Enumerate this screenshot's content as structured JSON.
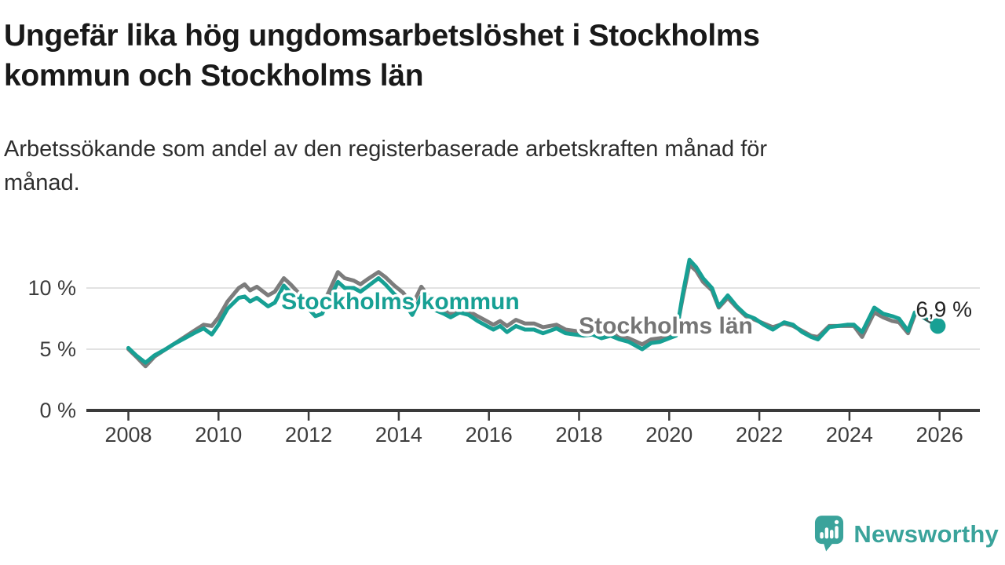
{
  "chart_data": {
    "type": "line",
    "title": "Ungefär lika hög ungdomsarbetslöshet i Stockholms kommun och Stockholms län",
    "subtitle": "Arbetssökande som andel av den registerbaserade arbetskraften månad för månad.",
    "unit": "%",
    "x_range": [
      2007.05,
      2026.9
    ],
    "y_range": [
      0,
      13
    ],
    "grid": "horizontal",
    "legend_position": "inline-labels-on-lines",
    "x_ticks": [
      "2008",
      "2010",
      "2012",
      "2014",
      "2016",
      "2018",
      "2020",
      "2022",
      "2024",
      "2026"
    ],
    "y_ticks": [
      {
        "value": 10,
        "label": "10 %",
        "grid": true
      },
      {
        "value": 5,
        "label": "5 %",
        "grid": true
      },
      {
        "value": 0,
        "label": "0 %",
        "grid": false
      }
    ],
    "series": [
      {
        "name": "Stockholms län",
        "color": "#7c7c7c",
        "points": [
          [
            2008.0,
            5.0
          ],
          [
            2008.17,
            4.4
          ],
          [
            2008.38,
            3.6
          ],
          [
            2008.58,
            4.4
          ],
          [
            2008.83,
            5.0
          ],
          [
            2009.0,
            5.4
          ],
          [
            2009.25,
            6.0
          ],
          [
            2009.5,
            6.6
          ],
          [
            2009.67,
            7.0
          ],
          [
            2009.85,
            6.9
          ],
          [
            2010.0,
            7.6
          ],
          [
            2010.2,
            8.9
          ],
          [
            2010.45,
            10.0
          ],
          [
            2010.58,
            10.3
          ],
          [
            2010.7,
            9.8
          ],
          [
            2010.85,
            10.1
          ],
          [
            2011.1,
            9.4
          ],
          [
            2011.25,
            9.7
          ],
          [
            2011.45,
            10.8
          ],
          [
            2011.6,
            10.3
          ],
          [
            2011.8,
            9.5
          ],
          [
            2012.0,
            9.1
          ],
          [
            2012.15,
            8.4
          ],
          [
            2012.3,
            8.6
          ],
          [
            2012.45,
            9.7
          ],
          [
            2012.65,
            11.3
          ],
          [
            2012.8,
            10.8
          ],
          [
            2013.0,
            10.6
          ],
          [
            2013.15,
            10.3
          ],
          [
            2013.3,
            10.7
          ],
          [
            2013.55,
            11.3
          ],
          [
            2013.7,
            10.9
          ],
          [
            2013.9,
            10.2
          ],
          [
            2014.1,
            9.6
          ],
          [
            2014.3,
            8.6
          ],
          [
            2014.5,
            10.1
          ],
          [
            2014.6,
            9.6
          ],
          [
            2014.8,
            8.7
          ],
          [
            2015.0,
            8.2
          ],
          [
            2015.15,
            7.9
          ],
          [
            2015.35,
            8.3
          ],
          [
            2015.55,
            8.1
          ],
          [
            2015.75,
            7.7
          ],
          [
            2015.9,
            7.4
          ],
          [
            2016.1,
            7.0
          ],
          [
            2016.25,
            7.3
          ],
          [
            2016.4,
            6.9
          ],
          [
            2016.6,
            7.4
          ],
          [
            2016.8,
            7.1
          ],
          [
            2017.0,
            7.1
          ],
          [
            2017.2,
            6.8
          ],
          [
            2017.5,
            7.0
          ],
          [
            2017.7,
            6.6
          ],
          [
            2017.9,
            6.5
          ],
          [
            2018.1,
            6.4
          ],
          [
            2018.3,
            6.5
          ],
          [
            2018.5,
            6.2
          ],
          [
            2018.7,
            6.4
          ],
          [
            2018.9,
            6.1
          ],
          [
            2019.1,
            5.9
          ],
          [
            2019.4,
            5.4
          ],
          [
            2019.6,
            5.8
          ],
          [
            2019.8,
            5.9
          ],
          [
            2020.0,
            6.1
          ],
          [
            2020.15,
            6.3
          ],
          [
            2020.3,
            9.2
          ],
          [
            2020.45,
            11.9
          ],
          [
            2020.6,
            11.4
          ],
          [
            2020.75,
            10.5
          ],
          [
            2020.95,
            9.8
          ],
          [
            2021.1,
            8.4
          ],
          [
            2021.3,
            9.2
          ],
          [
            2021.5,
            8.4
          ],
          [
            2021.7,
            7.7
          ],
          [
            2021.9,
            7.4
          ],
          [
            2022.1,
            7.1
          ],
          [
            2022.3,
            6.8
          ],
          [
            2022.55,
            7.1
          ],
          [
            2022.75,
            6.9
          ],
          [
            2022.95,
            6.5
          ],
          [
            2023.15,
            6.1
          ],
          [
            2023.3,
            6.0
          ],
          [
            2023.55,
            6.9
          ],
          [
            2023.75,
            6.9
          ],
          [
            2023.95,
            6.9
          ],
          [
            2024.1,
            6.9
          ],
          [
            2024.28,
            6.0
          ],
          [
            2024.55,
            8.0
          ],
          [
            2024.75,
            7.6
          ],
          [
            2024.95,
            7.3
          ],
          [
            2025.1,
            7.2
          ],
          [
            2025.3,
            6.3
          ],
          [
            2025.45,
            7.8
          ]
        ]
      },
      {
        "name": "Stockholms kommun",
        "color": "#17a094",
        "end_label": "6,9 %",
        "end_dot": true,
        "points": [
          [
            2008.0,
            5.1
          ],
          [
            2008.17,
            4.5
          ],
          [
            2008.38,
            3.9
          ],
          [
            2008.58,
            4.5
          ],
          [
            2008.83,
            5.0
          ],
          [
            2009.0,
            5.4
          ],
          [
            2009.25,
            5.9
          ],
          [
            2009.5,
            6.4
          ],
          [
            2009.67,
            6.7
          ],
          [
            2009.85,
            6.2
          ],
          [
            2010.0,
            7.0
          ],
          [
            2010.2,
            8.3
          ],
          [
            2010.45,
            9.2
          ],
          [
            2010.58,
            9.3
          ],
          [
            2010.7,
            8.9
          ],
          [
            2010.85,
            9.2
          ],
          [
            2011.1,
            8.5
          ],
          [
            2011.25,
            8.8
          ],
          [
            2011.45,
            10.2
          ],
          [
            2011.6,
            9.6
          ],
          [
            2011.8,
            8.7
          ],
          [
            2012.0,
            8.3
          ],
          [
            2012.15,
            7.7
          ],
          [
            2012.3,
            7.9
          ],
          [
            2012.45,
            9.0
          ],
          [
            2012.65,
            10.5
          ],
          [
            2012.8,
            10.0
          ],
          [
            2013.0,
            10.0
          ],
          [
            2013.15,
            9.7
          ],
          [
            2013.3,
            10.1
          ],
          [
            2013.55,
            10.8
          ],
          [
            2013.7,
            10.3
          ],
          [
            2013.9,
            9.5
          ],
          [
            2014.1,
            8.9
          ],
          [
            2014.3,
            7.8
          ],
          [
            2014.5,
            9.3
          ],
          [
            2014.6,
            8.9
          ],
          [
            2014.8,
            8.2
          ],
          [
            2015.0,
            7.9
          ],
          [
            2015.15,
            7.6
          ],
          [
            2015.35,
            8.0
          ],
          [
            2015.55,
            7.8
          ],
          [
            2015.75,
            7.3
          ],
          [
            2015.9,
            7.0
          ],
          [
            2016.1,
            6.6
          ],
          [
            2016.25,
            6.9
          ],
          [
            2016.4,
            6.4
          ],
          [
            2016.6,
            6.9
          ],
          [
            2016.8,
            6.6
          ],
          [
            2017.0,
            6.6
          ],
          [
            2017.2,
            6.3
          ],
          [
            2017.5,
            6.7
          ],
          [
            2017.7,
            6.3
          ],
          [
            2017.9,
            6.2
          ],
          [
            2018.1,
            6.1
          ],
          [
            2018.3,
            6.2
          ],
          [
            2018.5,
            5.9
          ],
          [
            2018.7,
            6.1
          ],
          [
            2018.9,
            5.8
          ],
          [
            2019.1,
            5.6
          ],
          [
            2019.4,
            5.0
          ],
          [
            2019.6,
            5.5
          ],
          [
            2019.8,
            5.6
          ],
          [
            2020.0,
            5.9
          ],
          [
            2020.15,
            6.1
          ],
          [
            2020.3,
            9.5
          ],
          [
            2020.45,
            12.3
          ],
          [
            2020.6,
            11.7
          ],
          [
            2020.75,
            10.8
          ],
          [
            2020.95,
            10.0
          ],
          [
            2021.1,
            8.5
          ],
          [
            2021.3,
            9.4
          ],
          [
            2021.5,
            8.5
          ],
          [
            2021.7,
            7.8
          ],
          [
            2021.9,
            7.5
          ],
          [
            2022.1,
            7.0
          ],
          [
            2022.3,
            6.6
          ],
          [
            2022.55,
            7.2
          ],
          [
            2022.75,
            7.0
          ],
          [
            2022.95,
            6.4
          ],
          [
            2023.15,
            6.0
          ],
          [
            2023.3,
            5.8
          ],
          [
            2023.55,
            6.8
          ],
          [
            2023.75,
            6.9
          ],
          [
            2023.95,
            7.0
          ],
          [
            2024.1,
            7.0
          ],
          [
            2024.28,
            6.4
          ],
          [
            2024.55,
            8.4
          ],
          [
            2024.75,
            7.9
          ],
          [
            2024.95,
            7.7
          ],
          [
            2025.1,
            7.5
          ],
          [
            2025.3,
            6.5
          ],
          [
            2025.45,
            8.0
          ],
          [
            2025.96,
            6.9
          ]
        ]
      }
    ]
  },
  "branding": {
    "label": "Newsworthy",
    "icon": "newsworthy-speech-bubble-bar-chart-icon",
    "color": "#3aa39b"
  },
  "colors": {
    "kommun_line": "#17a094",
    "lan_line": "#7c7c7c",
    "gridline": "#d8d8d8",
    "axis": "#3a3a3a",
    "title_text": "#191919",
    "subtitle_text": "#2e2e2e",
    "brand_teal": "#3aa39b"
  }
}
